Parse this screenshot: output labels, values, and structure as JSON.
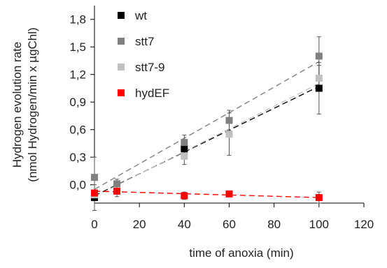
{
  "chart_data": {
    "type": "scatter",
    "xlabel": "time of anoxia (min)",
    "ylabel_line1": "Hydrogen evolution rate",
    "ylabel_line2": "(nmol Hydrogen/min x µgChl)",
    "xlim": [
      0,
      120
    ],
    "ylim": [
      -0.2,
      1.95
    ],
    "xticks": [
      0,
      20,
      40,
      60,
      80,
      100,
      120
    ],
    "xtick_labels": [
      "0",
      "20",
      "40",
      "60",
      "80",
      "100",
      "120"
    ],
    "yticks": [
      0.0,
      0.3,
      0.6,
      0.9,
      1.2,
      1.5,
      1.8
    ],
    "ytick_labels": [
      "0,0",
      "0,3",
      "0,6",
      "0,9",
      "1,2",
      "1,5",
      "1,8"
    ],
    "grid": false,
    "legend_position": "top-left inside",
    "series": [
      {
        "name": "wt",
        "color": "#000000",
        "points": [
          {
            "x": 0,
            "y": -0.14,
            "err": 0.14
          },
          {
            "x": 40,
            "y": 0.39,
            "err": 0.08
          },
          {
            "x": 100,
            "y": 1.05,
            "err": 0.28
          }
        ],
        "trend": [
          [
            0,
            -0.12
          ],
          [
            100,
            1.07
          ]
        ]
      },
      {
        "name": "stt7",
        "color": "#808080",
        "points": [
          {
            "x": 0,
            "y": 0.08,
            "err": 0.22
          },
          {
            "x": 10,
            "y": 0.01,
            "err": 0.05
          },
          {
            "x": 40,
            "y": 0.46,
            "err": 0.08
          },
          {
            "x": 60,
            "y": 0.7,
            "err": 0.11
          },
          {
            "x": 100,
            "y": 1.4,
            "err": 0.21
          }
        ],
        "trend": [
          [
            0,
            -0.05
          ],
          [
            100,
            1.34
          ]
        ]
      },
      {
        "name": "stt7-9",
        "color": "#c0c0c0",
        "points": [
          {
            "x": 0,
            "y": -0.11,
            "err": 0.05
          },
          {
            "x": 40,
            "y": 0.31,
            "err": 0.09
          },
          {
            "x": 60,
            "y": 0.55,
            "err": 0.23
          },
          {
            "x": 100,
            "y": 1.16,
            "err": 0.14
          }
        ],
        "trend": [
          [
            0,
            -0.13
          ],
          [
            100,
            1.1
          ]
        ]
      },
      {
        "name": "hydEF",
        "color": "#ff0000",
        "points": [
          {
            "x": 0,
            "y": -0.09,
            "err": 0.03
          },
          {
            "x": 10,
            "y": -0.07,
            "err": 0.06
          },
          {
            "x": 40,
            "y": -0.12,
            "err": 0.04
          },
          {
            "x": 60,
            "y": -0.1,
            "err": 0.02
          },
          {
            "x": 100,
            "y": -0.14,
            "err": 0.06
          }
        ],
        "trend": [
          [
            0,
            -0.07
          ],
          [
            100,
            -0.14
          ]
        ]
      }
    ]
  }
}
